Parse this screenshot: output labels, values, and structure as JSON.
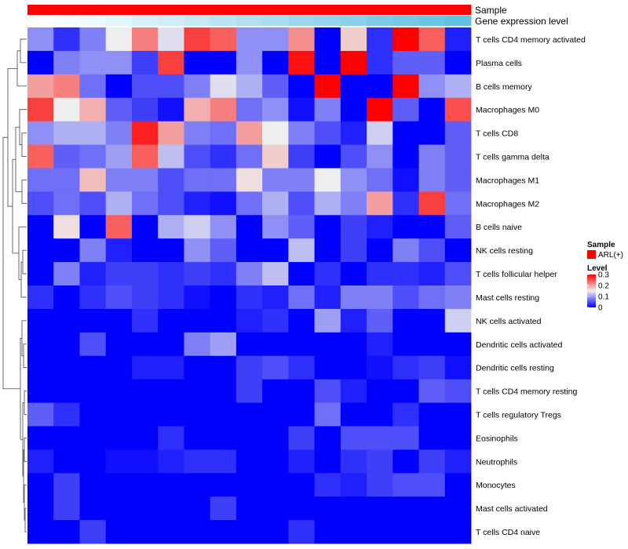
{
  "chart_data": {
    "type": "heatmap",
    "annotation_labels": [
      "Sample",
      "Gene expression level"
    ],
    "n_columns": 17,
    "sample_annotation_color": "#FF0000",
    "gene_expression_colors": [
      "#FFFFFF",
      "#F7FCFF",
      "#EEF8FD",
      "#E4F4FB",
      "#DAF0F9",
      "#D0ECF7",
      "#C6E8F5",
      "#BCE4F3",
      "#B2E0F1",
      "#A8DCF0",
      "#9ED8EE",
      "#94D4EC",
      "#8AD0EA",
      "#80CCE8",
      "#76C8E6",
      "#6CC4E4",
      "#62C0E2"
    ],
    "rows": [
      "T cells CD4 memory activated",
      "Plasma cells",
      "B cells memory",
      "Macrophages M0",
      "T cells CD8",
      "T cells gamma delta",
      "Macrophages M1",
      "Macrophages M2",
      "B cells naive",
      "NK cells resting",
      "T cells follicular helper",
      "Mast cells resting",
      "NK cells activated",
      "Dendritic cells activated",
      "Dendritic cells resting",
      "T cells CD4 memory resting",
      "T cells regulatory  Tregs",
      "Eosinophils",
      "Neutrophils",
      "Monocytes",
      "Mast cells activated",
      "T cells CD4 naive"
    ],
    "values": [
      [
        0.09,
        0.03,
        0.08,
        0.15,
        0.22,
        0.14,
        0.26,
        0.24,
        0.09,
        0.09,
        0.21,
        0.0,
        0.17,
        0.03,
        0.3,
        0.24,
        0.02
      ],
      [
        0.0,
        0.08,
        0.09,
        0.09,
        0.04,
        0.26,
        0.0,
        0.0,
        0.09,
        0.0,
        0.29,
        0.0,
        0.3,
        0.03,
        0.06,
        0.06,
        0.0
      ],
      [
        0.2,
        0.22,
        0.07,
        0.0,
        0.05,
        0.05,
        0.08,
        0.14,
        0.11,
        0.06,
        0.0,
        0.3,
        0.0,
        0.0,
        0.3,
        0.09,
        0.11
      ],
      [
        0.26,
        0.15,
        0.19,
        0.06,
        0.04,
        0.01,
        0.19,
        0.22,
        0.07,
        0.09,
        0.01,
        0.08,
        0.0,
        0.3,
        0.06,
        0.0,
        0.25
      ],
      [
        0.09,
        0.11,
        0.11,
        0.08,
        0.28,
        0.2,
        0.08,
        0.07,
        0.2,
        0.15,
        0.08,
        0.05,
        0.02,
        0.13,
        0.0,
        0.0,
        0.06
      ],
      [
        0.24,
        0.06,
        0.07,
        0.1,
        0.24,
        0.12,
        0.05,
        0.03,
        0.07,
        0.17,
        0.04,
        0.0,
        0.05,
        0.09,
        0.0,
        0.08,
        0.06
      ],
      [
        0.07,
        0.07,
        0.18,
        0.08,
        0.08,
        0.05,
        0.07,
        0.07,
        0.16,
        0.08,
        0.08,
        0.15,
        0.09,
        0.07,
        0.01,
        0.08,
        0.06
      ],
      [
        0.05,
        0.07,
        0.05,
        0.11,
        0.07,
        0.05,
        0.02,
        0.01,
        0.07,
        0.11,
        0.05,
        0.11,
        0.08,
        0.2,
        0.03,
        0.26,
        0.07
      ],
      [
        0.0,
        0.16,
        0.0,
        0.24,
        0.0,
        0.11,
        0.13,
        0.09,
        0.0,
        0.09,
        0.06,
        0.0,
        0.04,
        0.02,
        0.0,
        0.0,
        0.06
      ],
      [
        0.0,
        0.0,
        0.08,
        0.02,
        0.0,
        0.0,
        0.09,
        0.06,
        0.0,
        0.0,
        0.12,
        0.0,
        0.04,
        0.0,
        0.08,
        0.05,
        0.0
      ],
      [
        0.0,
        0.08,
        0.02,
        0.04,
        0.04,
        0.03,
        0.04,
        0.03,
        0.08,
        0.12,
        0.0,
        0.03,
        0.0,
        0.03,
        0.03,
        0.02,
        0.05
      ],
      [
        0.03,
        0.0,
        0.03,
        0.05,
        0.04,
        0.03,
        0.01,
        0.0,
        0.03,
        0.02,
        0.07,
        0.02,
        0.08,
        0.08,
        0.05,
        0.07,
        0.08
      ],
      [
        0.0,
        0.0,
        0.0,
        0.0,
        0.03,
        0.0,
        0.0,
        0.0,
        0.02,
        0.03,
        0.0,
        0.1,
        0.02,
        0.06,
        0.0,
        0.0,
        0.13
      ],
      [
        0.0,
        0.0,
        0.05,
        0.0,
        0.0,
        0.0,
        0.08,
        0.1,
        0.0,
        0.0,
        0.0,
        0.0,
        0.0,
        0.02,
        0.0,
        0.0,
        0.0
      ],
      [
        0.0,
        0.0,
        0.0,
        0.0,
        0.02,
        0.02,
        0.0,
        0.0,
        0.04,
        0.05,
        0.03,
        0.0,
        0.0,
        0.01,
        0.03,
        0.04,
        0.01
      ],
      [
        0.0,
        0.0,
        0.0,
        0.0,
        0.0,
        0.0,
        0.0,
        0.0,
        0.04,
        0.0,
        0.0,
        0.05,
        0.02,
        0.0,
        0.0,
        0.06,
        0.05
      ],
      [
        0.06,
        0.03,
        0.0,
        0.0,
        0.0,
        0.0,
        0.0,
        0.0,
        0.0,
        0.0,
        0.0,
        0.07,
        0.0,
        0.0,
        0.03,
        0.0,
        0.0
      ],
      [
        0.0,
        0.0,
        0.0,
        0.0,
        0.0,
        0.03,
        0.0,
        0.0,
        0.0,
        0.0,
        0.04,
        0.0,
        0.05,
        0.05,
        0.05,
        0.0,
        0.0
      ],
      [
        0.02,
        0.0,
        0.0,
        0.01,
        0.01,
        0.02,
        0.03,
        0.03,
        0.0,
        0.0,
        0.02,
        0.0,
        0.03,
        0.04,
        0.0,
        0.04,
        0.02
      ],
      [
        0.0,
        0.04,
        0.0,
        0.0,
        0.0,
        0.0,
        0.0,
        0.0,
        0.0,
        0.0,
        0.0,
        0.03,
        0.02,
        0.04,
        0.05,
        0.05,
        0.0
      ],
      [
        0.0,
        0.04,
        0.0,
        0.0,
        0.0,
        0.0,
        0.0,
        0.04,
        0.0,
        0.0,
        0.0,
        0.0,
        0.0,
        0.0,
        0.0,
        0.0,
        0.0
      ],
      [
        0.0,
        0.0,
        0.04,
        0.0,
        0.0,
        0.0,
        0.0,
        0.0,
        0.0,
        0.0,
        0.03,
        0.0,
        0.0,
        0.0,
        0.0,
        0.0,
        0.0
      ]
    ],
    "color_scale": {
      "min": 0,
      "max": 0.3,
      "low_color": "#0000FF",
      "mid_color": "#EEEEEE",
      "high_color": "#FF0000"
    },
    "legend": {
      "position": "right",
      "sample_title": "Sample",
      "sample_entry": "ARL(+)",
      "sample_color": "#FF0000",
      "level_title": "Level",
      "level_ticks": [
        {
          "value": 0.3,
          "label": "0.3"
        },
        {
          "value": 0.2,
          "label": "0.2"
        },
        {
          "value": 0.1,
          "label": "0.1"
        },
        {
          "value": 0.0,
          "label": "0"
        }
      ]
    }
  }
}
